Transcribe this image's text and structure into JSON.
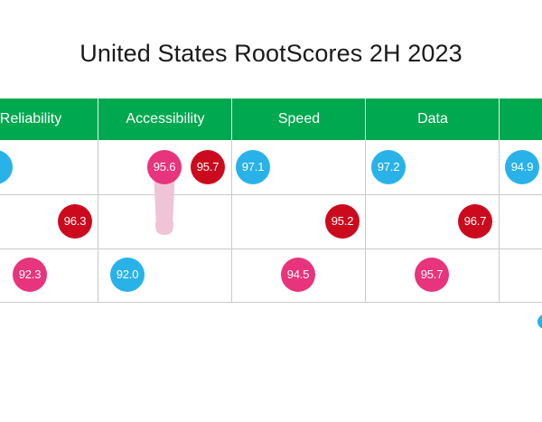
{
  "title": "United States RootScores 2H 2023",
  "colors": {
    "header": "#00a84f",
    "blue": "#29b2e8",
    "pink": "#e8347c",
    "red": "#cc0a1e",
    "trail": "#efc4d6",
    "grid": "#c9c9c9"
  },
  "chart_data": {
    "type": "table",
    "title": "United States RootScores 2H 2023",
    "columns": [
      "Reliability",
      "Accessibility",
      "Speed",
      "Data",
      ""
    ],
    "rows": [
      {
        "cells": [
          [
            {
              "value": "",
              "color": "blue"
            }
          ],
          [
            {
              "value": "95.6",
              "color": "pink"
            },
            {
              "value": "95.7",
              "color": "red"
            }
          ],
          [
            {
              "value": "97.1",
              "color": "blue"
            }
          ],
          [
            {
              "value": "97.2",
              "color": "blue"
            }
          ],
          [
            {
              "value": "94.9",
              "color": "blue"
            }
          ]
        ]
      },
      {
        "cells": [
          [
            {
              "value": "96.3",
              "color": "red"
            }
          ],
          [],
          [
            {
              "value": "95.2",
              "color": "red"
            }
          ],
          [
            {
              "value": "96.7",
              "color": "red"
            }
          ],
          []
        ]
      },
      {
        "cells": [
          [
            {
              "value": "92.3",
              "color": "pink"
            }
          ],
          [
            {
              "value": "92.0",
              "color": "blue"
            }
          ],
          [
            {
              "value": "94.5",
              "color": "pink"
            }
          ],
          [
            {
              "value": "95.7",
              "color": "pink"
            }
          ],
          []
        ]
      }
    ]
  }
}
